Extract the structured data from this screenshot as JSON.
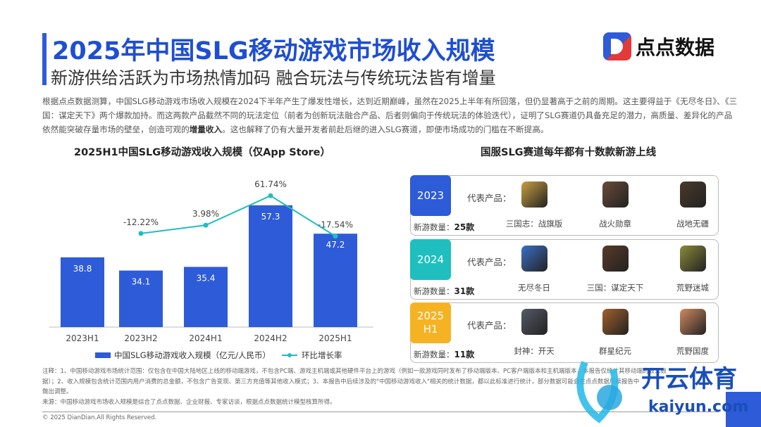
{
  "header": {
    "title": "2025年中国SLG移动游戏市场收入规模",
    "subtitle": "新游供给活跃为市场热情加码 融合玩法与传统玩法皆有增量",
    "logo_text": "点点数据"
  },
  "intro": {
    "part1": "根据点点数据测算，中国SLG移动游戏市场收入规模在2024下半年产生了爆发性增长，达到近期巅峰，虽然在2025上半年有所回落，但仍显著高于之前的周期。这主要得益于《无尽冬日》、《三国：谋定天下》两个爆款加持。而这两款产品截然不同的玩法定位（前者为创新玩法融合产品、后者则偏向于传统玩法的体验迭代），证明了SLG赛道仍具备充足的潜力，高质量、差异化的产品依然能突破存量市场的壁垒，创造可观的",
    "bold": "增量收入",
    "part2": "。这也解释了仍有大量开发者前赴后继的进入SLG赛道，即便市场成功的门槛在不断提高。"
  },
  "chart_data": {
    "type": "bar",
    "title": "2025H1中国SLG移动游戏收入规模（仅App Store）",
    "categories": [
      "2023H1",
      "2023H2",
      "2024H1",
      "2024H2",
      "2025H1"
    ],
    "series": [
      {
        "name": "中国SLG移动游戏收入规模（亿元/人民币）",
        "type": "bar",
        "values": [
          38.8,
          34.1,
          35.4,
          57.3,
          47.2
        ],
        "labels": [
          "38.8",
          "34.1",
          "35.4",
          "57.3",
          "47.2"
        ],
        "color": "#2e5bd8"
      },
      {
        "name": "环比增长率",
        "type": "line",
        "values": [
          null,
          -12.22,
          3.98,
          61.74,
          -17.54
        ],
        "labels": [
          "",
          "-12.22%",
          "3.98%",
          "61.74%",
          "-17.54%"
        ],
        "color": "#1fbfbf"
      }
    ],
    "legend": "bottom"
  },
  "panels": {
    "title": "国服SLG赛道每年都有十数款新游上线",
    "rep_label": "代表产品：",
    "count_label": "新游数量：",
    "rows": [
      {
        "year": "2023",
        "color": "#2e5bd8",
        "count": "25款",
        "games": [
          {
            "name": "三国志：战旗版",
            "icon": "#c9a040"
          },
          {
            "name": "战火勋章",
            "icon": "#6b4a3a"
          },
          {
            "name": "战地无疆",
            "icon": "#4a3a2a"
          }
        ]
      },
      {
        "year": "2024",
        "color": "#1fbfbf",
        "count": "31款",
        "games": [
          {
            "name": "无尽冬日",
            "icon": "#3a6fc4"
          },
          {
            "name": "三国：谋定天下",
            "icon": "#5a3a2a"
          },
          {
            "name": "荒野迷城",
            "icon": "#8a8a3a"
          }
        ]
      },
      {
        "year": "2025\nH1",
        "color": "#f5b324",
        "count": "11款",
        "games": [
          {
            "name": "封神：开天",
            "icon": "#555a66"
          },
          {
            "name": "群星纪元",
            "icon": "#a0602a"
          },
          {
            "name": "荒野国度",
            "icon": "#d08a60"
          }
        ]
      }
    ]
  },
  "notes": {
    "line1": "注释：1、中国移动游戏市场统计范围：仅包含在中国大陆地区上线的移动端游戏，不包含PC端、游戏主机端或其他硬件平台上的游戏（例如一款游戏同时发布了移动端版本、PC客户端版本和主机端版本，本报告仅统计其移动端的收入数",
    "line2": "据）；2、收入规模包含统计范围内用户消费的总金额，不包含广告变现、第三方充值等其他收入模式；3、本报告中后续涉及的\"中国移动游戏收入\"相关的统计数据，都以此标准进行统计，部分数据可能会在点点数据后续报告中",
    "line3": "做出调整。",
    "source": "来源：中国移动游戏市场收入规模是综合了点点数据、企业财报、专家访谈，根据点点数据统计模型核算所得。",
    "copyright": "© 2025 DianDian.All Rights Reserved."
  },
  "watermark": {
    "brand": "开云体育",
    "domain": "kaiyun.com"
  }
}
